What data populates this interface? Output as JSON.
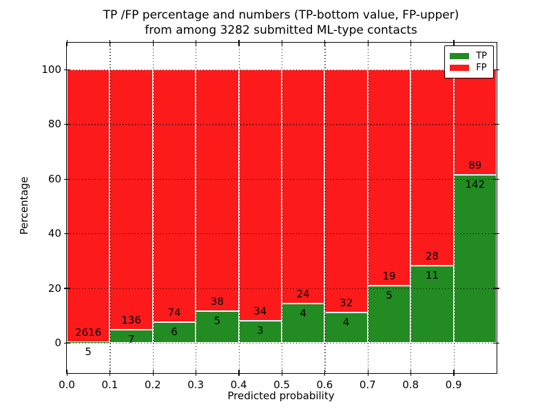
{
  "figure": {
    "title_line1": "TP /FP percentage and numbers (TP-bottom value, FP-upper)",
    "title_line2": "from among 3282 submitted ML-type contacts"
  },
  "chart_data": {
    "type": "bar",
    "stacked": true,
    "normalized": "percent",
    "title": "TP /FP percentage and numbers (TP-bottom value, FP-upper)\nfrom among 3282 submitted ML-type contacts",
    "xlabel": "Predicted probability",
    "ylabel": "Percentage",
    "bin_starts": [
      0.0,
      0.1,
      0.2,
      0.3,
      0.4,
      0.5,
      0.6,
      0.7,
      0.8,
      0.9
    ],
    "bin_width": 0.1,
    "series": [
      {
        "name": "TP",
        "color": "#228b22",
        "values": [
          5,
          7,
          6,
          5,
          3,
          4,
          4,
          5,
          11,
          142
        ]
      },
      {
        "name": "FP",
        "color": "#fc1a1a",
        "values": [
          2616,
          136,
          74,
          38,
          34,
          24,
          32,
          19,
          28,
          89
        ]
      }
    ],
    "tp_percent_per_bin": [
      0.19,
      4.9,
      7.5,
      11.63,
      8.11,
      14.29,
      11.11,
      20.83,
      28.21,
      61.47
    ],
    "x_tick_labels": [
      "0.0",
      "0.1",
      "0.2",
      "0.3",
      "0.4",
      "0.5",
      "0.6",
      "0.7",
      "0.8",
      "0.9"
    ],
    "y_ticks": [
      0,
      20,
      40,
      60,
      80,
      100
    ],
    "xlim": [
      0.0,
      1.0
    ],
    "ylim": [
      -11,
      110
    ],
    "grid": "dotted",
    "bar_edge_color": "#ffffff",
    "legend_position": "upper right",
    "legend_entries": [
      "TP",
      "FP"
    ]
  }
}
